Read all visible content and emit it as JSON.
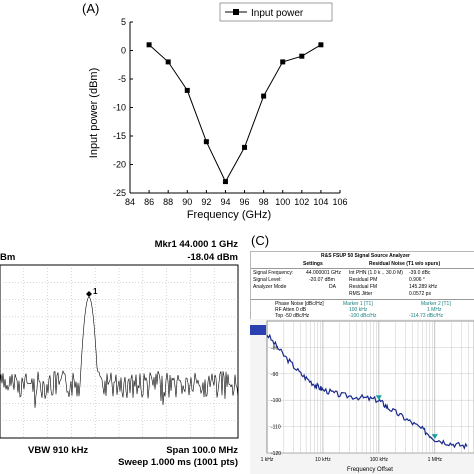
{
  "panel_a": {
    "label": "(A)",
    "chart_data": {
      "type": "line",
      "series": [
        {
          "name": "Input power",
          "x": [
            86,
            88,
            90,
            92,
            94,
            96,
            98,
            100,
            102,
            104
          ],
          "y": [
            1,
            -2,
            -7,
            -16,
            -23,
            -17,
            -8,
            -2,
            -1,
            1
          ]
        }
      ],
      "legend": "top-right",
      "xlabel": "Frequency (GHz)",
      "ylabel": "Input power (dBm)",
      "xlim": [
        84,
        106
      ],
      "ylim": [
        -25,
        5
      ],
      "xticks": [
        84,
        86,
        88,
        90,
        92,
        94,
        96,
        98,
        100,
        102,
        104,
        106
      ],
      "yticks": [
        -25,
        -20,
        -15,
        -10,
        -5,
        0,
        5
      ],
      "grid": false
    }
  },
  "panel_b": {
    "marker_line1": "Mkr1 44.000 1 GHz",
    "marker_line2": "-18.04 dBm",
    "ref_unit": "Bm",
    "marker_label": "1",
    "vbw": "VBW 910 kHz",
    "span": "Span 100.0 MHz",
    "sweep": "Sweep  1.000 ms (1001 pts)"
  },
  "panel_c": {
    "label": "(C)",
    "header_title": "R&S FSUP 50 Signal Source Analyzer",
    "settings": {
      "heading": "Settings",
      "rows": [
        {
          "label": "Signal Frequency:",
          "value": "44.000001 GHz"
        },
        {
          "label": "Signal Level:",
          "value": "-20.07 dBm"
        },
        {
          "label": "Analyzer Mode",
          "value": "DA"
        }
      ]
    },
    "residual": {
      "heading": "Residual Noise (T1 w/o spurs)",
      "rows": [
        {
          "label": "Int PHN (1.0 k .. 30.0 M)",
          "value": "-39.0 dBc"
        },
        {
          "label": "Residual PM",
          "value": "0.906 °"
        },
        {
          "label": "Residual FM",
          "value": "145.289 kHz"
        },
        {
          "label": "RMS Jitter",
          "value": "0.0572 ps"
        }
      ]
    },
    "trace_info": {
      "title": "Phase Noise [dBc/Hz]",
      "rf_atten": "RF Atten     0 dB",
      "top": "Top   -50 dBc/Hz",
      "marker1_title": "Marker 1 [T1]",
      "marker1_freq": "100 kHz",
      "marker1_val": "-100 dBc/Hz",
      "marker2_title": "Marker 2 [T1]",
      "marker2_freq": "1 MHz",
      "marker2_val": "-114.73 dBc/Hz"
    },
    "chart_data": {
      "type": "line",
      "xscale": "log",
      "xlabel": "Frequency Offset",
      "xticks": [
        "1 kHz",
        "10 kHz",
        "100 kHz",
        "1 MHz"
      ],
      "ylim": [
        -120,
        -70
      ],
      "yticks": [
        -120,
        -110,
        -100,
        -90,
        -80
      ],
      "series": [
        {
          "x": [
            1000,
            2000,
            4000,
            7000,
            10000,
            20000,
            50000,
            100000,
            150000,
            300000,
            600000,
            1000000,
            2000000,
            4000000
          ],
          "y": [
            -75,
            -83,
            -90,
            -94,
            -96,
            -98,
            -99,
            -100,
            -103,
            -107,
            -111,
            -114.7,
            -116.5,
            -117.5
          ]
        }
      ]
    }
  }
}
